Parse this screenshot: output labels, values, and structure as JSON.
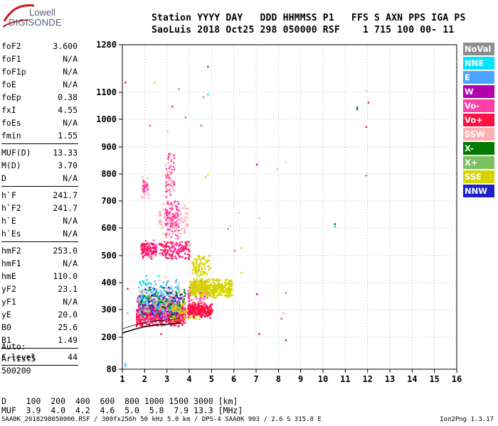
{
  "logo": {
    "line1": "Lowell",
    "line2": "DIGISONDE"
  },
  "header": {
    "line1": "Station YYYY DAY   DDD HHMMSS P1   FFS S AXN PPS IGA PS",
    "line2": "SaoLuis 2018 Oct25 298 050000 RSF    1 715 100 00- 11"
  },
  "params": [
    {
      "name": "foF2",
      "value": "3.600"
    },
    {
      "name": "foF1",
      "value": "N/A"
    },
    {
      "name": "foF1p",
      "value": "N/A"
    },
    {
      "name": "foE",
      "value": "N/A"
    },
    {
      "name": "foEp",
      "value": "0.38"
    },
    {
      "name": "fxI",
      "value": "4.55"
    },
    {
      "name": "foEs",
      "value": "N/A"
    },
    {
      "name": "fmin",
      "value": "1.55"
    },
    {
      "sep": true
    },
    {
      "name": "MUF(D)",
      "value": "13.33"
    },
    {
      "name": "M(D)",
      "value": "3.70"
    },
    {
      "name": "D",
      "value": "N/A"
    },
    {
      "sep": true
    },
    {
      "name": "h`F",
      "value": "241.7"
    },
    {
      "name": "h`F2",
      "value": "241.7"
    },
    {
      "name": "h`E",
      "value": "N/A"
    },
    {
      "name": "h`Es",
      "value": "N/A"
    },
    {
      "sep": true
    },
    {
      "name": "hmF2",
      "value": "253.0"
    },
    {
      "name": "hmF1",
      "value": "N/A"
    },
    {
      "name": "hmE",
      "value": "110.0"
    },
    {
      "name": "yF2",
      "value": "23.1"
    },
    {
      "name": "yF1",
      "value": "N/A"
    },
    {
      "name": "yE",
      "value": "20.0"
    },
    {
      "name": "B0",
      "value": "25.6"
    },
    {
      "name": "B1",
      "value": "1.49"
    },
    {
      "sep": true
    },
    {
      "name": "C-level",
      "value": "44"
    },
    {
      "sep": true
    }
  ],
  "auto": {
    "line1": "Auto:",
    "line2": "Artist5",
    "line3": "500200"
  },
  "footer": {
    "d_line": "D    100  200  400  600  800 1000 1500 3000 [km]",
    "muf_line": "MUF  3.9  4.0  4.2  4.6  5.0  5.8  7.9 13.3 [MHz]",
    "info": "SAA0K_2018298050000.RSF / 300fx256h 50 kHz 5.0 km / DPS-4 SAA0K 903 / 2.6 S 315.8 E",
    "version": "Ion2Png 1.3.17"
  },
  "legend": [
    {
      "label": "NoVal",
      "color": "#8c8c8c"
    },
    {
      "label": "NNE",
      "color": "#00e5ff"
    },
    {
      "label": "E",
      "color": "#4aa3ff"
    },
    {
      "label": "W",
      "color": "#b000b0"
    },
    {
      "label": "Vo-",
      "color": "#ff3fa8"
    },
    {
      "label": "Vo+",
      "color": "#ff1040"
    },
    {
      "label": "SSW",
      "color": "#ffb0b0"
    },
    {
      "label": "X-",
      "color": "#007a00"
    },
    {
      "label": "X+",
      "color": "#7cc060"
    },
    {
      "label": "SSE",
      "color": "#d4d400"
    },
    {
      "label": "NNW",
      "color": "#2020c8"
    }
  ],
  "chart_data": {
    "type": "scatter",
    "xlim": [
      1,
      16
    ],
    "ylim": [
      80,
      1280
    ],
    "x_ticks": [
      1,
      2,
      3,
      4,
      5,
      6,
      7,
      8,
      9,
      10,
      11,
      12,
      13,
      14,
      15,
      16
    ],
    "y_tick_labels": [
      "80",
      "200",
      "300",
      "400",
      "500",
      "600",
      "700",
      "800",
      "900",
      "1000",
      "1100",
      "1280"
    ],
    "y_tick_values": [
      80,
      200,
      300,
      400,
      500,
      600,
      700,
      800,
      900,
      1000,
      1100,
      1280
    ],
    "grid": true,
    "profile_curve": {
      "x": [
        1.0,
        1.5,
        2.0,
        2.5,
        3.0,
        3.3,
        3.6
      ],
      "y": [
        215,
        228,
        238,
        244,
        247,
        249,
        252
      ]
    },
    "clusters": [
      {
        "series": "Vo+",
        "x": [
          1.6,
          3.8
        ],
        "y": [
          240,
          320
        ],
        "n": 520
      },
      {
        "series": "Vo-",
        "x": [
          1.6,
          3.8
        ],
        "y": [
          240,
          360
        ],
        "n": 300
      },
      {
        "series": "W",
        "x": [
          1.6,
          3.6
        ],
        "y": [
          260,
          360
        ],
        "n": 120
      },
      {
        "series": "E",
        "x": [
          1.7,
          3.6
        ],
        "y": [
          260,
          420
        ],
        "n": 110
      },
      {
        "series": "NNE",
        "x": [
          1.7,
          3.6
        ],
        "y": [
          270,
          440
        ],
        "n": 90
      },
      {
        "series": "X-",
        "x": [
          1.7,
          3.8
        ],
        "y": [
          270,
          390
        ],
        "n": 80
      },
      {
        "series": "X+",
        "x": [
          1.7,
          3.8
        ],
        "y": [
          270,
          390
        ],
        "n": 60
      },
      {
        "series": "SSW",
        "x": [
          1.7,
          3.6
        ],
        "y": [
          260,
          430
        ],
        "n": 60
      },
      {
        "series": "NNW",
        "x": [
          1.7,
          3.6
        ],
        "y": [
          270,
          400
        ],
        "n": 40
      },
      {
        "series": "SSE",
        "x": [
          3.2,
          4.6
        ],
        "y": [
          250,
          340
        ],
        "n": 80
      },
      {
        "series": "Vo+",
        "x": [
          3.9,
          5.0
        ],
        "y": [
          270,
          330
        ],
        "n": 220
      },
      {
        "series": "Vo-",
        "x": [
          3.9,
          4.8
        ],
        "y": [
          300,
          430
        ],
        "n": 110
      },
      {
        "series": "SSE",
        "x": [
          4.0,
          5.9
        ],
        "y": [
          345,
          420
        ],
        "n": 420
      },
      {
        "series": "SSE",
        "x": [
          4.1,
          4.9
        ],
        "y": [
          420,
          510
        ],
        "n": 80
      },
      {
        "series": "Vo-",
        "x": [
          1.8,
          2.5
        ],
        "y": [
          490,
          560
        ],
        "n": 90
      },
      {
        "series": "Vo+",
        "x": [
          1.8,
          2.5
        ],
        "y": [
          490,
          560
        ],
        "n": 40
      },
      {
        "series": "Vo-",
        "x": [
          2.6,
          4.0
        ],
        "y": [
          480,
          560
        ],
        "n": 110
      },
      {
        "series": "Vo+",
        "x": [
          2.6,
          4.0
        ],
        "y": [
          480,
          560
        ],
        "n": 50
      },
      {
        "series": "SSW",
        "x": [
          2.6,
          3.9
        ],
        "y": [
          560,
          700
        ],
        "n": 120
      },
      {
        "series": "Vo-",
        "x": [
          2.9,
          3.5
        ],
        "y": [
          560,
          720
        ],
        "n": 90
      },
      {
        "series": "SSW",
        "x": [
          2.9,
          3.3
        ],
        "y": [
          700,
          900
        ],
        "n": 50
      },
      {
        "series": "Vo-",
        "x": [
          2.9,
          3.3
        ],
        "y": [
          700,
          900
        ],
        "n": 30
      },
      {
        "series": "SSW",
        "x": [
          1.8,
          2.2
        ],
        "y": [
          700,
          800
        ],
        "n": 30
      },
      {
        "series": "Vo-",
        "x": [
          1.9,
          2.1
        ],
        "y": [
          720,
          790
        ],
        "n": 20
      }
    ],
    "points": [
      {
        "series": "X-",
        "x": 4.8,
        "y": 1200
      },
      {
        "series": "SSE",
        "x": 2.4,
        "y": 1140
      },
      {
        "series": "Vo+",
        "x": 3.2,
        "y": 1050
      },
      {
        "series": "E",
        "x": 3.5,
        "y": 1115
      },
      {
        "series": "NNE",
        "x": 4.8,
        "y": 1095
      },
      {
        "series": "E",
        "x": 4.6,
        "y": 1085
      },
      {
        "series": "Vo+",
        "x": 1.1,
        "y": 1140
      },
      {
        "series": "SSW",
        "x": 3.0,
        "y": 960
      },
      {
        "series": "Vo-",
        "x": 2.2,
        "y": 980
      },
      {
        "series": "E",
        "x": 3.8,
        "y": 1010
      },
      {
        "series": "X-",
        "x": 11.5,
        "y": 1040
      },
      {
        "series": "X-",
        "x": 11.5,
        "y": 1047
      },
      {
        "series": "Vo+",
        "x": 11.9,
        "y": 975
      },
      {
        "series": "SSW",
        "x": 11.9,
        "y": 1108
      },
      {
        "series": "Vo+",
        "x": 12.0,
        "y": 1065
      },
      {
        "series": "Vo-",
        "x": 11.9,
        "y": 797
      },
      {
        "series": "W",
        "x": 7.0,
        "y": 838
      },
      {
        "series": "SSW",
        "x": 7.9,
        "y": 820
      },
      {
        "series": "SSW",
        "x": 8.3,
        "y": 848
      },
      {
        "series": "X-",
        "x": 10.5,
        "y": 617
      },
      {
        "series": "E",
        "x": 10.5,
        "y": 608
      },
      {
        "series": "E",
        "x": 8.3,
        "y": 365
      },
      {
        "series": "SSE",
        "x": 6.3,
        "y": 530
      },
      {
        "series": "W",
        "x": 7.0,
        "y": 360
      },
      {
        "series": "Vo+",
        "x": 7.1,
        "y": 215
      },
      {
        "series": "SSW",
        "x": 8.2,
        "y": 290
      },
      {
        "series": "Vo-",
        "x": 8.1,
        "y": 270
      },
      {
        "series": "W",
        "x": 8.3,
        "y": 192
      },
      {
        "series": "SSW",
        "x": 7.1,
        "y": 640
      },
      {
        "series": "SSW",
        "x": 5.8,
        "y": 610
      },
      {
        "series": "SSE",
        "x": 6.3,
        "y": 440
      },
      {
        "series": "X+",
        "x": 5.7,
        "y": 600
      },
      {
        "series": "SSW",
        "x": 6.2,
        "y": 660
      },
      {
        "series": "NNE",
        "x": 1.2,
        "y": 290
      },
      {
        "series": "NNE",
        "x": 1.1,
        "y": 103
      },
      {
        "series": "E",
        "x": 1.1,
        "y": 95
      },
      {
        "series": "Vo+",
        "x": 1.2,
        "y": 380
      },
      {
        "series": "Vo-",
        "x": 4.5,
        "y": 980
      },
      {
        "series": "SSE",
        "x": 4.8,
        "y": 800
      },
      {
        "series": "SSE",
        "x": 4.7,
        "y": 790
      },
      {
        "series": "Vo+",
        "x": 2.7,
        "y": 215
      },
      {
        "series": "Vo-",
        "x": 6.0,
        "y": 520
      }
    ]
  }
}
